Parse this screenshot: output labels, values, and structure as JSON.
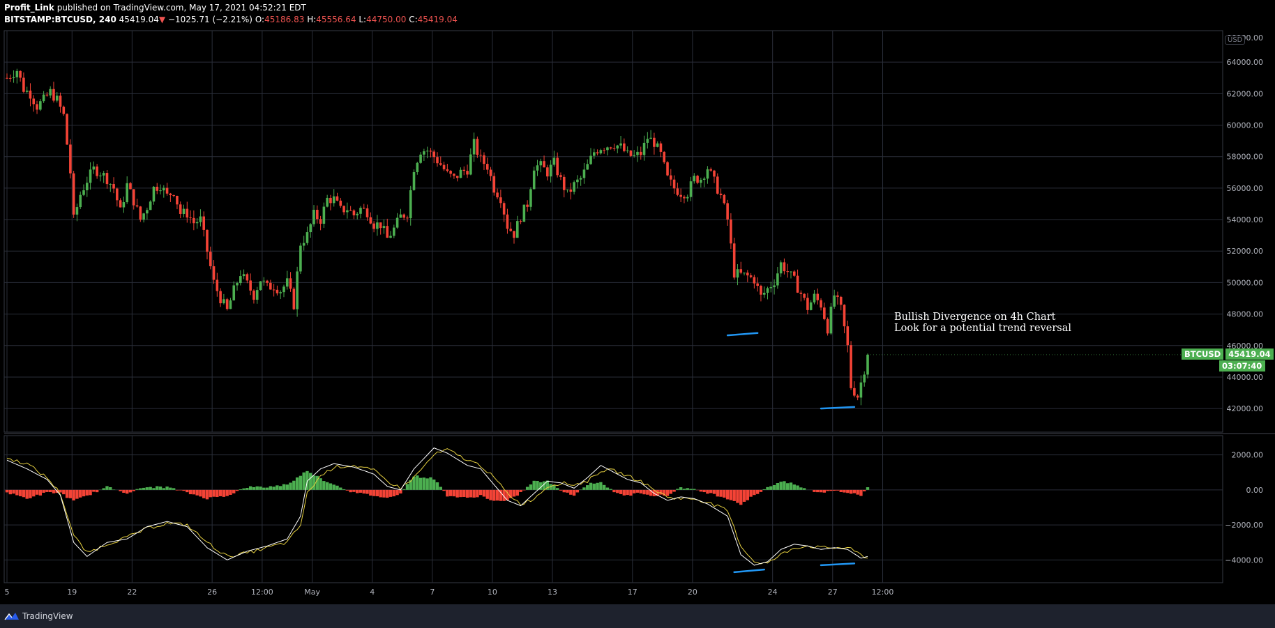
{
  "header": {
    "author": "Profit_Link",
    "published_text": "published on TradingView.com, May 17, 2021 04:52:21 EDT",
    "symbol": "BITSTAMP:BTCUSD, 240",
    "last": "45419.04",
    "change_arrow": "▼",
    "change": "−1025.71 (−2.21%)",
    "o_label": "O:",
    "o_value": "45186.83",
    "h_label": "H:",
    "h_value": "45556.64",
    "l_label": "L:",
    "l_value": "44750.00",
    "c_label": "C:",
    "c_value": "45419.04"
  },
  "annotation": {
    "line1": "Bullish Divergence on 4h Chart",
    "line2": "Look for a potential trend reversal"
  },
  "price_tag": {
    "symbol": "BTCUSD",
    "price": "45419.04",
    "countdown": "03:07:40"
  },
  "currency_label": "USD",
  "footer": {
    "brand": "TradingView",
    "logo_icon": "tradingview-logo-icon"
  },
  "colors": {
    "up": "#4caf50",
    "down": "#f44336",
    "grid": "#2a2e39",
    "macd": "#ffffff",
    "signal": "#e7d140",
    "trendline": "#2196f3",
    "price_tag": "#4caf50"
  },
  "chart_data": {
    "type": "candlestick",
    "timeframe": "240",
    "price_axis": {
      "ticks": [
        "64000.00",
        "62000.00",
        "60000.00",
        "58000.00",
        "56000.00",
        "54000.00",
        "52000.00",
        "50000.00",
        "48000.00",
        "46000.00",
        "44000.00",
        "42000.00"
      ],
      "range": [
        40500,
        66000
      ],
      "top_partial_label": "66000.00"
    },
    "macd_axis": {
      "ticks": [
        "2000.00",
        "0.00",
        "−2000.00",
        "−4000.00"
      ],
      "range": [
        -5300,
        3100
      ]
    },
    "x_axis": {
      "ticks": [
        {
          "label": "5",
          "t": -0.25
        },
        {
          "label": "19",
          "t": 3
        },
        {
          "label": "22",
          "t": 6
        },
        {
          "label": "26",
          "t": 10
        },
        {
          "label": "12:00",
          "t": 12.5
        },
        {
          "label": "May",
          "t": 15
        },
        {
          "label": "4",
          "t": 18
        },
        {
          "label": "7",
          "t": 21
        },
        {
          "label": "10",
          "t": 24
        },
        {
          "label": "13",
          "t": 27
        },
        {
          "label": "17",
          "t": 31
        },
        {
          "label": "20",
          "t": 34
        },
        {
          "label": "24",
          "t": 38
        },
        {
          "label": "27",
          "t": 41
        },
        {
          "label": "12:00",
          "t": 43.5
        }
      ],
      "bars_per_unit": 6
    },
    "close_path": [
      [
        0,
        63000
      ],
      [
        3,
        63500
      ],
      [
        5,
        62300
      ],
      [
        7,
        62000
      ],
      [
        9,
        61200
      ],
      [
        11,
        61600
      ],
      [
        13,
        62100
      ],
      [
        15,
        61600
      ],
      [
        17,
        60600
      ],
      [
        19,
        57000
      ],
      [
        20,
        54000
      ],
      [
        22,
        55600
      ],
      [
        24,
        56500
      ],
      [
        26,
        57200
      ],
      [
        28,
        57000
      ],
      [
        30,
        56600
      ],
      [
        32,
        56000
      ],
      [
        34,
        54500
      ],
      [
        36,
        56200
      ],
      [
        38,
        55200
      ],
      [
        40,
        54000
      ],
      [
        42,
        54800
      ],
      [
        44,
        56000
      ],
      [
        46,
        56200
      ],
      [
        48,
        55500
      ],
      [
        50,
        55800
      ],
      [
        52,
        54400
      ],
      [
        54,
        54400
      ],
      [
        56,
        53800
      ],
      [
        58,
        54000
      ],
      [
        60,
        52000
      ],
      [
        62,
        50000
      ],
      [
        64,
        49000
      ],
      [
        66,
        48200
      ],
      [
        68,
        49500
      ],
      [
        70,
        50600
      ],
      [
        72,
        49900
      ],
      [
        74,
        49200
      ],
      [
        76,
        50200
      ],
      [
        78,
        49700
      ],
      [
        80,
        49800
      ],
      [
        82,
        49500
      ],
      [
        84,
        50000
      ],
      [
        86,
        48600
      ],
      [
        88,
        52500
      ],
      [
        90,
        53000
      ],
      [
        92,
        54300
      ],
      [
        94,
        54000
      ],
      [
        96,
        55300
      ],
      [
        98,
        55300
      ],
      [
        100,
        54600
      ],
      [
        102,
        54700
      ],
      [
        104,
        54300
      ],
      [
        106,
        54700
      ],
      [
        108,
        54500
      ],
      [
        110,
        53700
      ],
      [
        112,
        53700
      ],
      [
        114,
        52800
      ],
      [
        116,
        53400
      ],
      [
        118,
        54200
      ],
      [
        120,
        54400
      ],
      [
        122,
        57300
      ],
      [
        124,
        58400
      ],
      [
        126,
        58400
      ],
      [
        128,
        58000
      ],
      [
        130,
        57500
      ],
      [
        132,
        56900
      ],
      [
        134,
        56600
      ],
      [
        136,
        57000
      ],
      [
        138,
        57200
      ],
      [
        140,
        58800
      ],
      [
        142,
        57800
      ],
      [
        144,
        57400
      ],
      [
        146,
        56000
      ],
      [
        148,
        55400
      ],
      [
        150,
        53600
      ],
      [
        152,
        53100
      ],
      [
        154,
        54200
      ],
      [
        156,
        55000
      ],
      [
        158,
        57400
      ],
      [
        160,
        57400
      ],
      [
        162,
        57000
      ],
      [
        164,
        57600
      ],
      [
        166,
        56500
      ],
      [
        168,
        55600
      ],
      [
        170,
        56200
      ],
      [
        172,
        56600
      ],
      [
        174,
        57400
      ],
      [
        176,
        58300
      ],
      [
        178,
        58600
      ],
      [
        180,
        58700
      ],
      [
        182,
        58800
      ],
      [
        184,
        58600
      ],
      [
        186,
        58100
      ],
      [
        188,
        58000
      ],
      [
        190,
        58200
      ],
      [
        192,
        59200
      ],
      [
        194,
        58900
      ],
      [
        196,
        58100
      ],
      [
        198,
        56600
      ],
      [
        200,
        56000
      ],
      [
        202,
        55700
      ],
      [
        204,
        55700
      ],
      [
        206,
        56600
      ],
      [
        208,
        56600
      ],
      [
        210,
        57300
      ],
      [
        212,
        56400
      ],
      [
        214,
        55500
      ],
      [
        216,
        54000
      ],
      [
        218,
        50600
      ],
      [
        220,
        50500
      ],
      [
        222,
        50400
      ],
      [
        224,
        50200
      ],
      [
        226,
        49100
      ],
      [
        228,
        49600
      ],
      [
        230,
        50100
      ],
      [
        232,
        51200
      ],
      [
        234,
        50700
      ],
      [
        236,
        50100
      ],
      [
        238,
        49300
      ],
      [
        240,
        48400
      ],
      [
        242,
        49100
      ],
      [
        244,
        48600
      ],
      [
        246,
        47100
      ],
      [
        248,
        49200
      ],
      [
        250,
        48300
      ],
      [
        252,
        45900
      ],
      [
        253,
        43400
      ],
      [
        255,
        42800
      ],
      [
        257,
        44500
      ],
      [
        258,
        45400
      ]
    ],
    "macd_path": [
      [
        0,
        1700
      ],
      [
        6,
        1200
      ],
      [
        12,
        600
      ],
      [
        16,
        -300
      ],
      [
        20,
        -3000
      ],
      [
        24,
        -3800
      ],
      [
        30,
        -3000
      ],
      [
        36,
        -2800
      ],
      [
        42,
        -2100
      ],
      [
        48,
        -1800
      ],
      [
        54,
        -2100
      ],
      [
        60,
        -3300
      ],
      [
        66,
        -4000
      ],
      [
        72,
        -3500
      ],
      [
        78,
        -3200
      ],
      [
        84,
        -2800
      ],
      [
        88,
        -1500
      ],
      [
        90,
        500
      ],
      [
        94,
        1200
      ],
      [
        98,
        1500
      ],
      [
        104,
        1300
      ],
      [
        110,
        900
      ],
      [
        114,
        200
      ],
      [
        118,
        0
      ],
      [
        122,
        1200
      ],
      [
        128,
        2400
      ],
      [
        132,
        2100
      ],
      [
        138,
        1400
      ],
      [
        142,
        1200
      ],
      [
        146,
        300
      ],
      [
        150,
        -600
      ],
      [
        154,
        -900
      ],
      [
        158,
        -200
      ],
      [
        162,
        500
      ],
      [
        166,
        400
      ],
      [
        170,
        100
      ],
      [
        174,
        700
      ],
      [
        178,
        1400
      ],
      [
        182,
        1000
      ],
      [
        186,
        600
      ],
      [
        190,
        400
      ],
      [
        194,
        -200
      ],
      [
        198,
        -600
      ],
      [
        202,
        -400
      ],
      [
        206,
        -500
      ],
      [
        210,
        -800
      ],
      [
        216,
        -1500
      ],
      [
        220,
        -3700
      ],
      [
        224,
        -4300
      ],
      [
        228,
        -4100
      ],
      [
        232,
        -3400
      ],
      [
        236,
        -3100
      ],
      [
        240,
        -3200
      ],
      [
        244,
        -3400
      ],
      [
        248,
        -3300
      ],
      [
        252,
        -3400
      ],
      [
        256,
        -3900
      ],
      [
        258,
        -3800
      ]
    ],
    "signal_path": [
      [
        0,
        1800
      ],
      [
        6,
        1500
      ],
      [
        12,
        700
      ],
      [
        16,
        -200
      ],
      [
        20,
        -2600
      ],
      [
        24,
        -3600
      ],
      [
        30,
        -3100
      ],
      [
        36,
        -2700
      ],
      [
        42,
        -2200
      ],
      [
        48,
        -1900
      ],
      [
        54,
        -2000
      ],
      [
        60,
        -3000
      ],
      [
        66,
        -3800
      ],
      [
        72,
        -3600
      ],
      [
        78,
        -3300
      ],
      [
        84,
        -3000
      ],
      [
        88,
        -2000
      ],
      [
        90,
        -200
      ],
      [
        94,
        800
      ],
      [
        98,
        1300
      ],
      [
        104,
        1400
      ],
      [
        110,
        1100
      ],
      [
        114,
        500
      ],
      [
        118,
        100
      ],
      [
        122,
        700
      ],
      [
        128,
        2000
      ],
      [
        132,
        2300
      ],
      [
        138,
        1700
      ],
      [
        142,
        1400
      ],
      [
        146,
        700
      ],
      [
        150,
        -200
      ],
      [
        154,
        -800
      ],
      [
        158,
        -500
      ],
      [
        162,
        200
      ],
      [
        166,
        400
      ],
      [
        170,
        300
      ],
      [
        174,
        500
      ],
      [
        178,
        1100
      ],
      [
        182,
        1100
      ],
      [
        186,
        800
      ],
      [
        190,
        500
      ],
      [
        194,
        0
      ],
      [
        198,
        -400
      ],
      [
        202,
        -500
      ],
      [
        206,
        -500
      ],
      [
        210,
        -700
      ],
      [
        216,
        -1200
      ],
      [
        220,
        -3200
      ],
      [
        224,
        -4100
      ],
      [
        228,
        -4200
      ],
      [
        232,
        -3700
      ],
      [
        236,
        -3300
      ],
      [
        240,
        -3200
      ],
      [
        244,
        -3300
      ],
      [
        248,
        -3300
      ],
      [
        252,
        -3300
      ],
      [
        256,
        -3700
      ],
      [
        258,
        -3900
      ]
    ],
    "trendlines": [
      {
        "pane": "price",
        "from": [
          216,
          46650
        ],
        "to": [
          225,
          46800
        ]
      },
      {
        "pane": "price",
        "from": [
          244,
          42000
        ],
        "to": [
          254,
          42100
        ]
      },
      {
        "pane": "macd",
        "from": [
          218,
          -4700
        ],
        "to": [
          227,
          -4550
        ]
      },
      {
        "pane": "macd",
        "from": [
          244,
          -4300
        ],
        "to": [
          254,
          -4200
        ]
      }
    ],
    "last_price": 45419.04
  }
}
